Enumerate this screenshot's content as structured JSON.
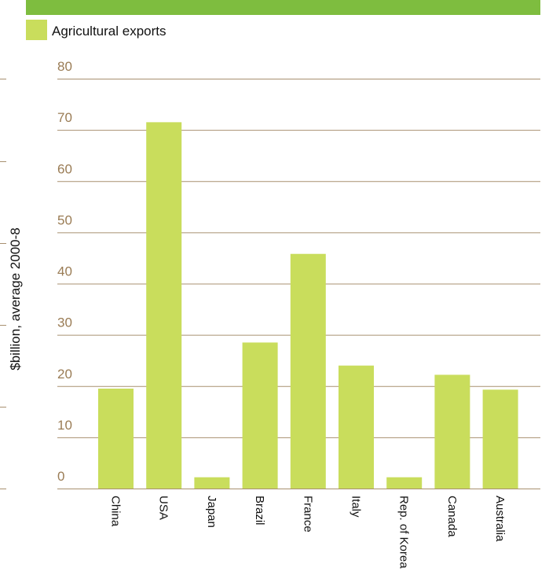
{
  "legend": {
    "label": "Agricultural exports",
    "color": "#c9dd5c"
  },
  "ylabel": "$billion, average 2000-8",
  "colors": {
    "bar": "#c9dd5c",
    "gridline": "#a89070",
    "tick_text": "#9a7c55",
    "top_bar": "#7ebd3f"
  },
  "chart_data": {
    "type": "bar",
    "title": "",
    "xlabel": "",
    "ylabel": "$billion, average 2000-8",
    "categories": [
      "China",
      "USA",
      "Japan",
      "Brazil",
      "France",
      "Italy",
      "Rep. of Korea",
      "Canada",
      "Australia"
    ],
    "series": [
      {
        "name": "Agricultural exports",
        "values": [
          19.5,
          71.5,
          2.2,
          28.5,
          45.8,
          24.0,
          2.2,
          22.2,
          19.3
        ]
      }
    ],
    "ylim": [
      0,
      80
    ],
    "yticks": [
      0,
      10,
      20,
      30,
      40,
      50,
      60,
      70,
      80
    ],
    "grid": true,
    "legend_position": "top-left"
  }
}
